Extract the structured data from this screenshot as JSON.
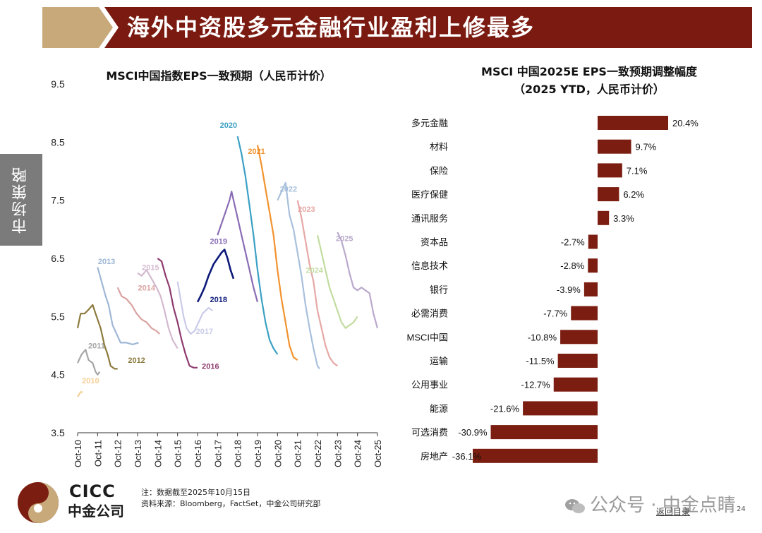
{
  "header": {
    "title": "海外中资股多元金融行业盈利上修最多"
  },
  "side_tab": {
    "label": "市场策略"
  },
  "footer": {
    "note_line1": "注：数据截至2025年10月15日",
    "note_line2": "资料来源：Bloomberg，FactSet，中金公司研究部",
    "logo_en": "CICC",
    "logo_cn": "中金公司",
    "watermark": "公众号 · 中金点睛",
    "back_link": "返回目录",
    "page_number": "24"
  },
  "colors": {
    "header_red": "#7a1a10",
    "header_tan": "#c8a97a",
    "bar_color": "#7b1d10",
    "logo_red": "#7b1d10",
    "logo_tan": "#c8a97a"
  },
  "chart_data": [
    {
      "type": "line",
      "title": "MSCI中国指数EPS一致预期（人民币计价）",
      "ylim": [
        3.5,
        9.5
      ],
      "yticks": [
        "9.5",
        "8.5",
        "7.5",
        "6.5",
        "5.5",
        "4.5",
        "3.5"
      ],
      "xlim": [
        2010.75,
        2025.75
      ],
      "xticks": [
        "Oct-10",
        "Oct-11",
        "Oct-12",
        "Oct-13",
        "Oct-14",
        "Oct-15",
        "Oct-16",
        "Oct-17",
        "Oct-18",
        "Oct-19",
        "Oct-20",
        "Oct-21",
        "Oct-22",
        "Oct-23",
        "Oct-24",
        "Oct-25"
      ],
      "series": [
        {
          "name": "2010",
          "color": "#f5cf92",
          "label_pos": [
            2011.4,
            4.35
          ],
          "points": [
            [
              2010.75,
              4.12
            ],
            [
              2010.9,
              4.2
            ],
            [
              2011.0,
              4.2
            ]
          ]
        },
        {
          "name": "2011",
          "color": "#a6a6a6",
          "label_pos": [
            2011.7,
            4.95
          ],
          "points": [
            [
              2010.75,
              4.7
            ],
            [
              2010.95,
              4.85
            ],
            [
              2011.15,
              4.93
            ],
            [
              2011.3,
              4.75
            ],
            [
              2011.5,
              4.7
            ],
            [
              2011.65,
              4.55
            ],
            [
              2011.75,
              4.5
            ],
            [
              2011.85,
              4.55
            ]
          ]
        },
        {
          "name": "2012",
          "color": "#8c7a3c",
          "label_pos": [
            2013.7,
            4.7
          ],
          "points": [
            [
              2010.75,
              5.3
            ],
            [
              2010.9,
              5.55
            ],
            [
              2011.1,
              5.55
            ],
            [
              2011.3,
              5.62
            ],
            [
              2011.5,
              5.7
            ],
            [
              2011.7,
              5.5
            ],
            [
              2011.9,
              5.3
            ],
            [
              2012.1,
              5.0
            ],
            [
              2012.25,
              4.85
            ],
            [
              2012.4,
              4.65
            ],
            [
              2012.6,
              4.6
            ],
            [
              2012.75,
              4.6
            ]
          ]
        },
        {
          "name": "2013",
          "color": "#9fb7d6",
          "label_pos": [
            2012.2,
            6.4
          ],
          "points": [
            [
              2011.75,
              6.35
            ],
            [
              2011.95,
              6.1
            ],
            [
              2012.15,
              5.85
            ],
            [
              2012.3,
              5.7
            ],
            [
              2012.5,
              5.35
            ],
            [
              2012.7,
              5.2
            ],
            [
              2012.9,
              5.05
            ],
            [
              2013.2,
              5.05
            ],
            [
              2013.5,
              5.02
            ],
            [
              2013.8,
              5.05
            ]
          ]
        },
        {
          "name": "2014",
          "color": "#d9a3a1",
          "label_pos": [
            2014.2,
            5.95
          ],
          "points": [
            [
              2012.75,
              6.0
            ],
            [
              2012.95,
              5.85
            ],
            [
              2013.2,
              5.8
            ],
            [
              2013.45,
              5.7
            ],
            [
              2013.7,
              5.55
            ],
            [
              2013.95,
              5.45
            ],
            [
              2014.2,
              5.4
            ],
            [
              2014.45,
              5.3
            ],
            [
              2014.7,
              5.25
            ],
            [
              2014.85,
              5.2
            ]
          ]
        },
        {
          "name": "2015",
          "color": "#d3b9cf",
          "label_pos": [
            2014.4,
            6.3
          ],
          "points": [
            [
              2013.75,
              6.25
            ],
            [
              2013.95,
              6.2
            ],
            [
              2014.2,
              6.3
            ],
            [
              2014.45,
              6.15
            ],
            [
              2014.7,
              6.0
            ],
            [
              2014.9,
              5.85
            ],
            [
              2015.1,
              5.6
            ],
            [
              2015.3,
              5.3
            ],
            [
              2015.5,
              5.1
            ],
            [
              2015.75,
              4.95
            ]
          ]
        },
        {
          "name": "2016",
          "color": "#8e3a6e",
          "label_pos": [
            2017.4,
            4.6
          ],
          "points": [
            [
              2014.75,
              6.5
            ],
            [
              2014.95,
              6.45
            ],
            [
              2015.15,
              6.2
            ],
            [
              2015.35,
              6.0
            ],
            [
              2015.55,
              5.65
            ],
            [
              2015.75,
              5.4
            ],
            [
              2015.95,
              5.1
            ],
            [
              2016.15,
              4.85
            ],
            [
              2016.35,
              4.65
            ],
            [
              2016.55,
              4.62
            ],
            [
              2016.75,
              4.62
            ]
          ]
        },
        {
          "name": "2017",
          "color": "#c9cbe9",
          "label_pos": [
            2017.1,
            5.2
          ],
          "points": [
            [
              2015.75,
              6.1
            ],
            [
              2015.9,
              5.8
            ],
            [
              2016.05,
              5.5
            ],
            [
              2016.2,
              5.3
            ],
            [
              2016.4,
              5.2
            ],
            [
              2016.6,
              5.25
            ],
            [
              2016.8,
              5.4
            ],
            [
              2017.0,
              5.55
            ],
            [
              2017.3,
              5.65
            ],
            [
              2017.5,
              5.6
            ]
          ]
        },
        {
          "name": "2018",
          "color": "#0d1a7a",
          "label_pos": [
            2017.8,
            5.75
          ],
          "points": [
            [
              2016.75,
              5.75
            ],
            [
              2016.9,
              5.85
            ],
            [
              2017.1,
              6.0
            ],
            [
              2017.3,
              6.2
            ],
            [
              2017.55,
              6.4
            ],
            [
              2017.75,
              6.5
            ],
            [
              2017.95,
              6.6
            ],
            [
              2018.1,
              6.65
            ],
            [
              2018.25,
              6.5
            ],
            [
              2018.4,
              6.3
            ],
            [
              2018.55,
              6.15
            ]
          ]
        },
        {
          "name": "2019",
          "color": "#8a6cb5",
          "label_pos": [
            2017.8,
            6.75
          ],
          "points": [
            [
              2017.75,
              6.9
            ],
            [
              2017.95,
              7.1
            ],
            [
              2018.15,
              7.3
            ],
            [
              2018.35,
              7.5
            ],
            [
              2018.45,
              7.65
            ],
            [
              2018.55,
              7.5
            ],
            [
              2018.75,
              7.2
            ],
            [
              2018.95,
              6.9
            ],
            [
              2019.15,
              6.6
            ],
            [
              2019.35,
              6.3
            ],
            [
              2019.55,
              6.0
            ],
            [
              2019.75,
              5.75
            ]
          ]
        },
        {
          "name": "2020",
          "color": "#3aa0c4",
          "label_pos": [
            2018.3,
            8.75
          ],
          "points": [
            [
              2018.75,
              8.6
            ],
            [
              2018.95,
              8.3
            ],
            [
              2019.15,
              7.9
            ],
            [
              2019.35,
              7.4
            ],
            [
              2019.55,
              6.9
            ],
            [
              2019.75,
              6.3
            ],
            [
              2019.95,
              5.8
            ],
            [
              2020.15,
              5.4
            ],
            [
              2020.35,
              5.1
            ],
            [
              2020.55,
              4.95
            ],
            [
              2020.75,
              4.85
            ]
          ]
        },
        {
          "name": "2021",
          "color": "#f2922e",
          "label_pos": [
            2019.7,
            8.3
          ],
          "points": [
            [
              2019.75,
              8.45
            ],
            [
              2019.95,
              8.1
            ],
            [
              2020.15,
              7.7
            ],
            [
              2020.35,
              7.3
            ],
            [
              2020.55,
              6.9
            ],
            [
              2020.75,
              6.3
            ],
            [
              2020.95,
              5.8
            ],
            [
              2021.15,
              5.4
            ],
            [
              2021.35,
              5.0
            ],
            [
              2021.55,
              4.8
            ],
            [
              2021.75,
              4.75
            ]
          ]
        },
        {
          "name": "2022",
          "color": "#a8c0dc",
          "label_pos": [
            2021.3,
            7.65
          ],
          "points": [
            [
              2020.75,
              7.5
            ],
            [
              2020.95,
              7.65
            ],
            [
              2021.15,
              7.8
            ],
            [
              2021.35,
              7.25
            ],
            [
              2021.55,
              7.0
            ],
            [
              2021.75,
              6.6
            ],
            [
              2021.95,
              6.2
            ],
            [
              2022.15,
              5.7
            ],
            [
              2022.35,
              5.3
            ],
            [
              2022.55,
              4.95
            ],
            [
              2022.75,
              4.65
            ],
            [
              2022.85,
              4.6
            ]
          ]
        },
        {
          "name": "2023",
          "color": "#e6a8a6",
          "label_pos": [
            2022.2,
            7.3
          ],
          "points": [
            [
              2021.75,
              7.5
            ],
            [
              2021.95,
              7.2
            ],
            [
              2022.15,
              6.8
            ],
            [
              2022.35,
              6.4
            ],
            [
              2022.55,
              6.1
            ],
            [
              2022.75,
              5.6
            ],
            [
              2022.95,
              5.3
            ],
            [
              2023.15,
              5.0
            ],
            [
              2023.35,
              4.8
            ],
            [
              2023.55,
              4.7
            ],
            [
              2023.75,
              4.65
            ]
          ]
        },
        {
          "name": "2024",
          "color": "#c2dca0",
          "label_pos": [
            2022.6,
            6.25
          ],
          "points": [
            [
              2022.75,
              6.9
            ],
            [
              2022.95,
              6.6
            ],
            [
              2023.15,
              6.3
            ],
            [
              2023.35,
              6.0
            ],
            [
              2023.55,
              5.8
            ],
            [
              2023.75,
              5.6
            ],
            [
              2023.95,
              5.4
            ],
            [
              2024.15,
              5.3
            ],
            [
              2024.35,
              5.35
            ],
            [
              2024.55,
              5.4
            ],
            [
              2024.75,
              5.5
            ]
          ]
        },
        {
          "name": "2025",
          "color": "#b9a9cc",
          "label_pos": [
            2024.1,
            6.8
          ],
          "points": [
            [
              2023.75,
              6.95
            ],
            [
              2023.95,
              6.8
            ],
            [
              2024.15,
              6.55
            ],
            [
              2024.35,
              6.25
            ],
            [
              2024.55,
              6.0
            ],
            [
              2024.75,
              5.95
            ],
            [
              2024.95,
              6.0
            ],
            [
              2025.15,
              5.95
            ],
            [
              2025.35,
              5.9
            ],
            [
              2025.55,
              5.55
            ],
            [
              2025.75,
              5.3
            ]
          ]
        }
      ]
    },
    {
      "type": "bar",
      "orientation": "horizontal",
      "title_line1": "MSCI 中国2025E EPS一致预期调整幅度",
      "title_line2": "（2025 YTD，人民币计价）",
      "xlim": [
        -36.1,
        20.4
      ],
      "categories": [
        "多元金融",
        "材料",
        "保险",
        "医疗保健",
        "通讯服务",
        "资本品",
        "信息技术",
        "银行",
        "必需消费",
        "MSCI中国",
        "运输",
        "公用事业",
        "能源",
        "可选消费",
        "房地产"
      ],
      "values": [
        20.4,
        9.7,
        7.1,
        6.2,
        3.3,
        -2.7,
        -2.8,
        -3.9,
        -7.7,
        -10.8,
        -11.5,
        -12.7,
        -21.6,
        -30.9,
        -36.1
      ],
      "value_labels": [
        "20.4%",
        "9.7%",
        "7.1%",
        "6.2%",
        "3.3%",
        "-2.7%",
        "-2.8%",
        "-3.9%",
        "-7.7%",
        "-10.8%",
        "-11.5%",
        "-12.7%",
        "-21.6%",
        "-30.9%",
        "-36.1%"
      ]
    }
  ]
}
